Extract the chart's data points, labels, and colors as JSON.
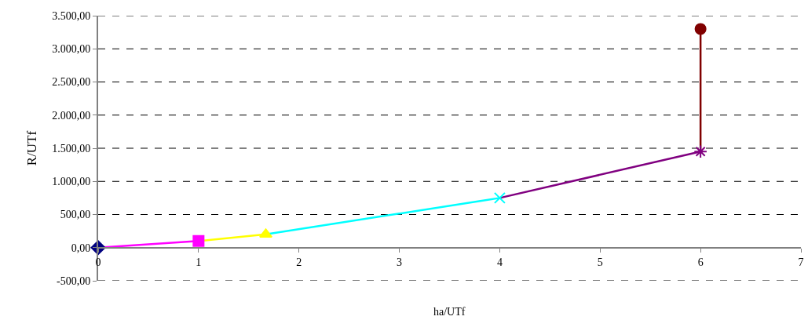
{
  "chart_data": {
    "type": "line",
    "xlabel": "ha/UTf",
    "ylabel": "R/UTf",
    "grid": "y",
    "line_style": "solid",
    "xlim": [
      0,
      7
    ],
    "xticks": [
      0,
      1,
      2,
      3,
      4,
      5,
      6,
      7
    ],
    "ylim": [
      -500,
      3500
    ],
    "yticks": [
      {
        "value": -500,
        "label": "-500,00"
      },
      {
        "value": 0,
        "label": "0,00"
      },
      {
        "value": 500,
        "label": "500,00"
      },
      {
        "value": 1000,
        "label": "1.000,00"
      },
      {
        "value": 1500,
        "label": "1.500,00"
      },
      {
        "value": 2000,
        "label": "2.000,00"
      },
      {
        "value": 2500,
        "label": "2.500,00"
      },
      {
        "value": 3000,
        "label": "3.000,00"
      },
      {
        "value": 3500,
        "label": "3.500,00"
      }
    ],
    "series": [
      {
        "color": "#ff00ff",
        "x": [
          0,
          1
        ],
        "values": [
          0,
          100
        ]
      },
      {
        "color": "#ffff00",
        "x": [
          1,
          1.67
        ],
        "values": [
          100,
          200
        ]
      },
      {
        "color": "#00ffff",
        "x": [
          1.67,
          4
        ],
        "values": [
          200,
          750
        ]
      },
      {
        "color": "#800080",
        "x": [
          4,
          6
        ],
        "values": [
          750,
          1450
        ]
      },
      {
        "color": "#800000",
        "x": [
          6,
          6
        ],
        "values": [
          1450,
          3300
        ]
      },
      {
        "type": "scatter",
        "x": [
          0,
          1,
          1.67,
          4,
          6,
          6
        ],
        "values": [
          0,
          100,
          200,
          750,
          1450,
          3300
        ],
        "colors": [
          "#000080",
          "#ff00ff",
          "#ffff00",
          "#00ffff",
          "#800080",
          "#800000"
        ],
        "marker": [
          "diamond",
          "square",
          "triangle",
          "cross",
          "star",
          "circle"
        ]
      }
    ]
  }
}
